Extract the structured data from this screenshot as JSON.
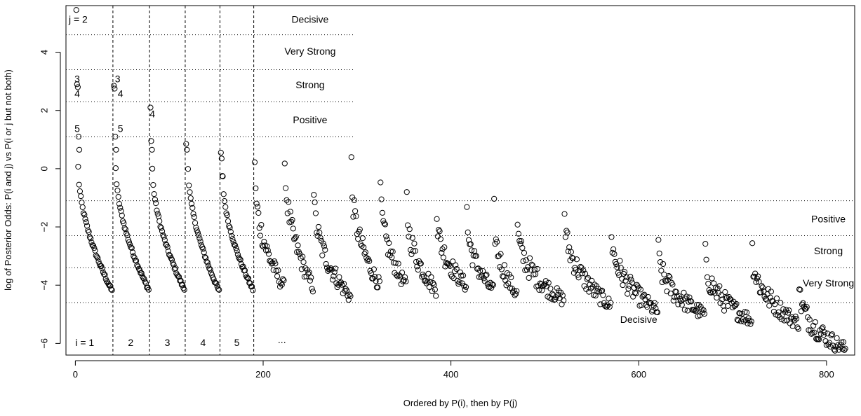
{
  "chart_data": {
    "type": "scatter",
    "xlabel": "Ordered by P(i), then by P(j)",
    "ylabel": "log of Posterior Odds: P(i and j) vs P(i or j but not both)",
    "xlim": [
      -10,
      830
    ],
    "ylim": [
      -6.4,
      5.6
    ],
    "x_ticks": [
      0,
      200,
      400,
      600,
      800
    ],
    "y_ticks": [
      -6,
      -4,
      -2,
      0,
      2,
      4
    ],
    "marker": "open-circle",
    "grid": false,
    "upper_threshold_lines": [
      1.1,
      2.3,
      3.4,
      4.6
    ],
    "upper_threshold_range": [
      -10,
      297
    ],
    "lower_threshold_lines": [
      -1.1,
      -2.3,
      -3.4,
      -4.6
    ],
    "lower_threshold_range": [
      -10,
      830
    ],
    "group_boundaries": [
      40,
      79,
      117,
      154,
      190
    ],
    "category_labels_upper": [
      {
        "text": "Decisive",
        "x": 250,
        "y": 5.1
      },
      {
        "text": "Very Strong",
        "x": 250,
        "y": 4.0
      },
      {
        "text": "Strong",
        "x": 250,
        "y": 2.85
      },
      {
        "text": "Positive",
        "x": 250,
        "y": 1.65
      }
    ],
    "category_labels_lower": [
      {
        "text": "Positive",
        "x": 802,
        "y": -1.75
      },
      {
        "text": "Strong",
        "x": 802,
        "y": -2.85
      },
      {
        "text": "Very Strong",
        "x": 802,
        "y": -3.95
      },
      {
        "text": "Decisive",
        "x": 600,
        "y": -5.2
      }
    ],
    "group_labels": [
      {
        "text": "i = 1",
        "x": 10,
        "y": -6.0
      },
      {
        "text": "2",
        "x": 59,
        "y": -6.0
      },
      {
        "text": "3",
        "x": 98,
        "y": -6.0
      },
      {
        "text": "4",
        "x": 136,
        "y": -6.0
      },
      {
        "text": "5",
        "x": 172,
        "y": -6.0
      },
      {
        "text": "...",
        "x": 220,
        "y": -5.9
      }
    ],
    "point_annotations": [
      {
        "text": "j = 2",
        "x": 3,
        "y": 5.1
      },
      {
        "text": "3",
        "x": 2,
        "y": 3.05
      },
      {
        "text": "4",
        "x": 2,
        "y": 2.55
      },
      {
        "text": "5",
        "x": 2,
        "y": 1.35
      },
      {
        "text": "3",
        "x": 45,
        "y": 3.05
      },
      {
        "text": "4",
        "x": 48,
        "y": 2.55
      },
      {
        "text": "5",
        "x": 48,
        "y": 1.35
      },
      {
        "text": "4",
        "x": 82,
        "y": 1.85
      }
    ],
    "point_groups": [
      {
        "x_start": 1,
        "x_end": 39,
        "top": [
          5.45,
          2.9,
          2.8,
          1.1,
          0.65
        ],
        "decay_start": 0.05,
        "decay_end": -4.2
      },
      {
        "x_start": 41,
        "x_end": 78,
        "top": [
          2.85,
          2.75,
          1.1,
          0.65
        ],
        "decay_start": 0.05,
        "decay_end": -4.15
      },
      {
        "x_start": 80,
        "x_end": 116,
        "top": [
          2.1,
          0.95,
          0.65
        ],
        "decay_start": 0.0,
        "decay_end": -4.15
      },
      {
        "x_start": 118,
        "x_end": 153,
        "top": [
          0.85,
          0.65
        ],
        "decay_start": 0.05,
        "decay_end": -4.2
      },
      {
        "x_start": 155,
        "x_end": 189,
        "top": [
          0.55,
          0.35,
          -0.25
        ],
        "decay_start": -0.3,
        "decay_end": -4.15
      }
    ],
    "tail_segments": [
      {
        "x_start": 191,
        "x_end": 222,
        "start": 0.2,
        "end": -4.05
      },
      {
        "x_start": 223,
        "x_end": 253,
        "start": 0.6,
        "end": -4.05
      },
      {
        "x_start": 254,
        "x_end": 293,
        "start": -0.65,
        "end": -4.4
      },
      {
        "x_start": 294,
        "x_end": 324,
        "start": 0.15,
        "end": -4.0
      },
      {
        "x_start": 325,
        "x_end": 352,
        "start": -0.55,
        "end": -4.0
      },
      {
        "x_start": 353,
        "x_end": 384,
        "start": -1.05,
        "end": -4.15
      },
      {
        "x_start": 385,
        "x_end": 416,
        "start": -1.4,
        "end": -4.0
      },
      {
        "x_start": 417,
        "x_end": 445,
        "start": -1.45,
        "end": -4.2
      },
      {
        "x_start": 446,
        "x_end": 470,
        "start": -1.45,
        "end": -4.3
      },
      {
        "x_start": 471,
        "x_end": 520,
        "start": -1.9,
        "end": -4.5
      },
      {
        "x_start": 521,
        "x_end": 570,
        "start": -1.5,
        "end": -4.7
      },
      {
        "x_start": 571,
        "x_end": 620,
        "start": -2.1,
        "end": -4.9
      },
      {
        "x_start": 621,
        "x_end": 670,
        "start": -2.8,
        "end": -5.0
      },
      {
        "x_start": 671,
        "x_end": 720,
        "start": -3.0,
        "end": -5.2
      },
      {
        "x_start": 721,
        "x_end": 770,
        "start": -2.75,
        "end": -5.3
      },
      {
        "x_start": 771,
        "x_end": 820,
        "start": -4.0,
        "end": -6.2
      }
    ]
  }
}
